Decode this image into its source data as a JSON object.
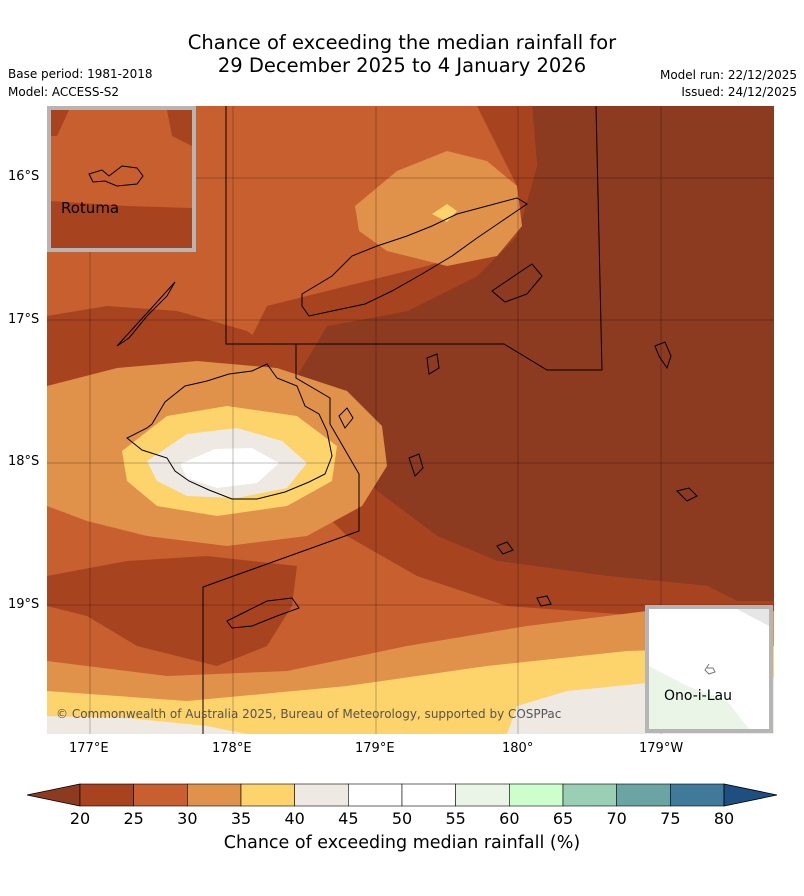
{
  "title": {
    "line1": "Chance of exceeding the median rainfall for",
    "line2": "29 December 2025 to 4 January 2026"
  },
  "meta": {
    "base_period": "Base period: 1981-2018",
    "model": "Model: ACCESS-S2",
    "model_run": "Model run: 22/12/2025",
    "issued": "Issued: 24/12/2025"
  },
  "map": {
    "lat_labels": [
      "16°S",
      "17°S",
      "18°S",
      "19°S"
    ],
    "lon_labels": [
      "177°E",
      "178°E",
      "179°E",
      "180°",
      "179°W"
    ],
    "copyright": "© Commonwealth of Australia 2025, Bureau of Meteorology, supported by COSPPac",
    "inset_rotuma": "Rotuma",
    "inset_ono": "Ono-i-Lau"
  },
  "colorbar": {
    "title": "Chance of exceeding median rainfall (%)",
    "ticks": [
      "20",
      "25",
      "30",
      "35",
      "40",
      "45",
      "50",
      "55",
      "60",
      "65",
      "70",
      "75",
      "80"
    ],
    "colors": [
      "#a7431f",
      "#c85f2e",
      "#e0914a",
      "#fdd36b",
      "#efe9e3",
      "#ffffff",
      "#ffffff",
      "#eaf5e8",
      "#ccffcc",
      "#99cfb5",
      "#6aa5a4",
      "#3f7a9a"
    ],
    "under_color": "#8c3a20",
    "over_color": "#1f4e80"
  },
  "colors": {
    "c20": "#8c3a20",
    "c25": "#a7431f",
    "c30": "#c85f2e",
    "c35": "#e0914a",
    "c40": "#fdd36b",
    "c45": "#efe9e3",
    "c50": "#ffffff",
    "c55": "#eaf5e8"
  }
}
